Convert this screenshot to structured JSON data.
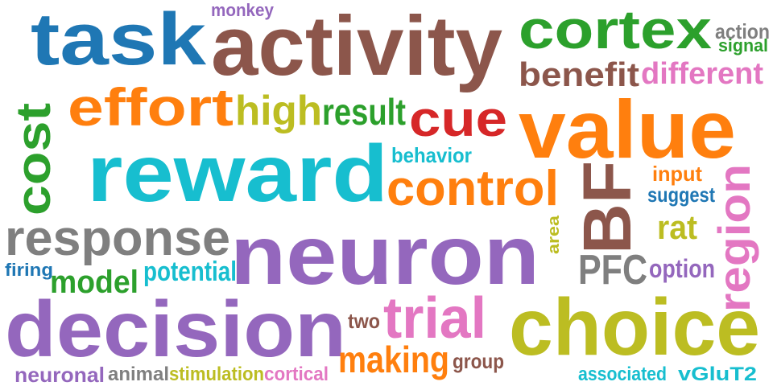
{
  "words": [
    {
      "text": "task",
      "color": "#1f77b4"
    },
    {
      "text": "activity",
      "color": "#8c564b"
    },
    {
      "text": "monkey",
      "color": "#9467bd"
    },
    {
      "text": "cortex",
      "color": "#2ca02c"
    },
    {
      "text": "action",
      "color": "#7f7f7f"
    },
    {
      "text": "signal",
      "color": "#2ca02c"
    },
    {
      "text": "benefit",
      "color": "#8c564b"
    },
    {
      "text": "different",
      "color": "#e377c2"
    },
    {
      "text": "effort",
      "color": "#ff7f0e"
    },
    {
      "text": "high",
      "color": "#bcbd22"
    },
    {
      "text": "result",
      "color": "#2ca02c"
    },
    {
      "text": "cue",
      "color": "#d62728"
    },
    {
      "text": "value",
      "color": "#ff7f0e"
    },
    {
      "text": "cost",
      "color": "#2ca02c"
    },
    {
      "text": "reward",
      "color": "#17becf"
    },
    {
      "text": "behavior",
      "color": "#17becf"
    },
    {
      "text": "control",
      "color": "#ff7f0e"
    },
    {
      "text": "input",
      "color": "#ff7f0e"
    },
    {
      "text": "suggest",
      "color": "#1f77b4"
    },
    {
      "text": "BF",
      "color": "#8c564b"
    },
    {
      "text": "region",
      "color": "#e377c2"
    },
    {
      "text": "rat",
      "color": "#bcbd22"
    },
    {
      "text": "area",
      "color": "#bcbd22"
    },
    {
      "text": "response",
      "color": "#7f7f7f"
    },
    {
      "text": "neuron",
      "color": "#9467bd"
    },
    {
      "text": "PFC",
      "color": "#7f7f7f"
    },
    {
      "text": "option",
      "color": "#9467bd"
    },
    {
      "text": "firing",
      "color": "#1f77b4"
    },
    {
      "text": "model",
      "color": "#2ca02c"
    },
    {
      "text": "potential",
      "color": "#17becf"
    },
    {
      "text": "decision",
      "color": "#9467bd"
    },
    {
      "text": "trial",
      "color": "#e377c2"
    },
    {
      "text": "choice",
      "color": "#bcbd22"
    },
    {
      "text": "two",
      "color": "#8c564b"
    },
    {
      "text": "making",
      "color": "#ff7f0e"
    },
    {
      "text": "group",
      "color": "#8c564b"
    },
    {
      "text": "neuronal",
      "color": "#9467bd"
    },
    {
      "text": "animal",
      "color": "#7f7f7f"
    },
    {
      "text": "stimulation",
      "color": "#bcbd22"
    },
    {
      "text": "cortical",
      "color": "#e377c2"
    },
    {
      "text": "associated",
      "color": "#17becf"
    },
    {
      "text": "vGluT2",
      "color": "#17becf"
    }
  ]
}
